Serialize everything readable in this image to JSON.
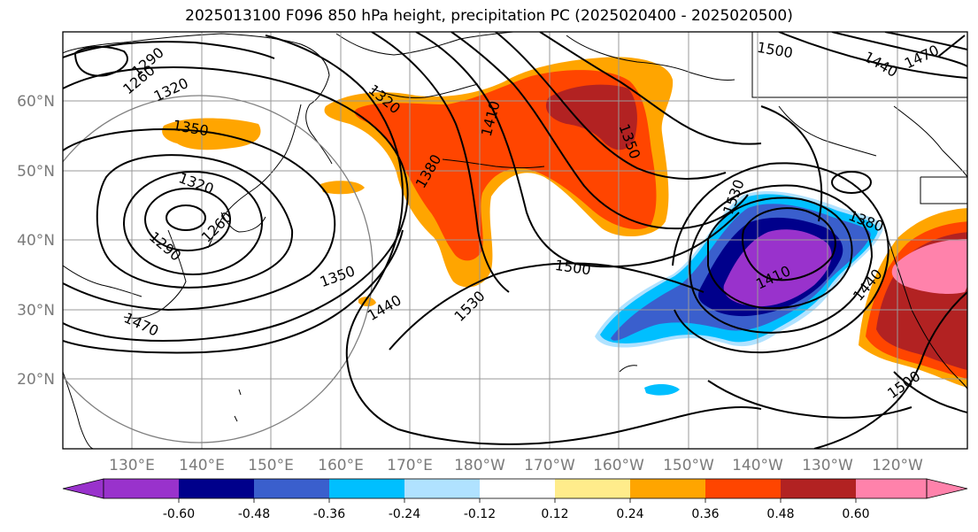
{
  "title": "2025013100 F096 850 hPa height, precipitation PC (2025020400 - 2025020500)",
  "lat_labels": [
    "60°N",
    "50°N",
    "40°N",
    "30°N",
    "20°N"
  ],
  "lon_labels": [
    "130°E",
    "140°E",
    "150°E",
    "160°E",
    "170°E",
    "180°W",
    "170°W",
    "160°W",
    "150°W",
    "140°W",
    "130°W",
    "120°W"
  ],
  "contour_labels": [
    "1260",
    "1290",
    "1320",
    "1350",
    "1320",
    "1290",
    "1260",
    "1350",
    "1380",
    "1410",
    "1320",
    "1440",
    "1470",
    "1500",
    "1530",
    "1350",
    "1530",
    "1500",
    "1380",
    "1410",
    "1440",
    "1500",
    "1470",
    "1440"
  ],
  "colorbar": {
    "ticks": [
      "-0.60",
      "-0.48",
      "-0.36",
      "-0.24",
      "-0.12",
      "0.12",
      "0.24",
      "0.36",
      "0.48",
      "0.60"
    ],
    "colors": [
      "#9932CC",
      "#00008B",
      "#3A5FCD",
      "#00BFFF",
      "#B0E2FF",
      "#FFFFFF",
      "#FFEC8B",
      "#FFA500",
      "#FF4500",
      "#B22222",
      "#FF82AB"
    ]
  },
  "fill_colors": {
    "orange": "#FFA500",
    "redorange": "#FF4500",
    "firebrick": "#B22222",
    "pink": "#FF82AB",
    "purple": "#9932CC",
    "navy": "#00008B",
    "royal": "#3A5FCD",
    "sky": "#00BFFF",
    "pale": "#B0E2FF"
  }
}
